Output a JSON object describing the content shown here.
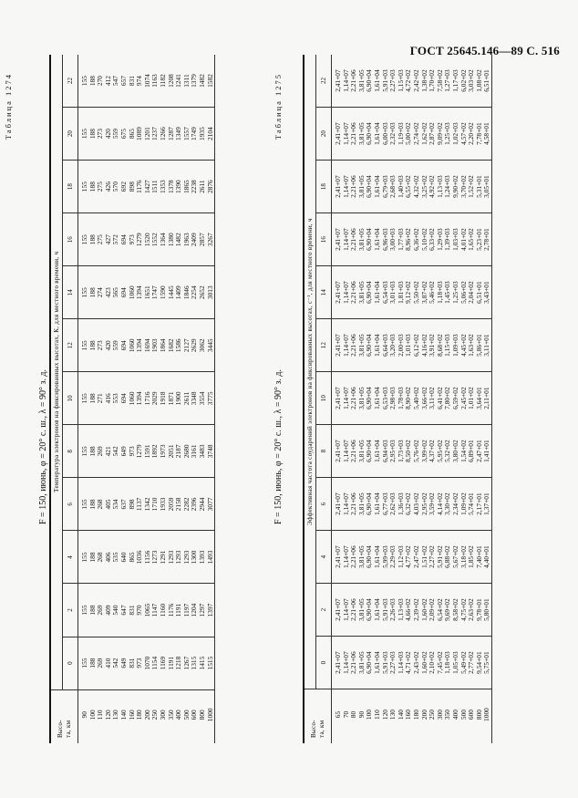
{
  "page_header": "ГОСТ 25645.146—89  С. 516",
  "tables": [
    {
      "caption": "Таблица 1274",
      "title": "F = 150, июнь, φ = 20° с. ш., λ = 90° з. д.",
      "header_group": "Температура электронов на фиксированных высотах, К, для местного времени, ч",
      "altitude_label": "Высо-та, км",
      "hours": [
        "0",
        "2",
        "4",
        "6",
        "8",
        "10",
        "12",
        "14",
        "16",
        "18",
        "20",
        "22"
      ],
      "altitudes": [
        "90",
        "100",
        "110",
        "120",
        "130",
        "140",
        "160",
        "180",
        "200",
        "250",
        "300",
        "350",
        "400",
        "500",
        "600",
        "800",
        "1000"
      ],
      "columns": [
        [
          "155",
          "188",
          "269",
          "410",
          "542",
          "649",
          "831",
          "973",
          "1070",
          "1154",
          "1169",
          "1191",
          "1218",
          "1267",
          "1315",
          "1415",
          "1515"
        ],
        [
          "155",
          "188",
          "269",
          "409",
          "540",
          "647",
          "831",
          "970",
          "1065",
          "1147",
          "1160",
          "1176",
          "1191",
          "1197",
          "1204",
          "1297",
          "1397"
        ],
        [
          "155",
          "188",
          "268",
          "406",
          "535",
          "640",
          "865",
          "1036",
          "1156",
          "1273",
          "1291",
          "1293",
          "1293",
          "1293",
          "1300",
          "1393",
          "1493"
        ],
        [
          "155",
          "188",
          "268",
          "405",
          "534",
          "637",
          "898",
          "1137",
          "1342",
          "1710",
          "1933",
          "2059",
          "2158",
          "2282",
          "2396",
          "2944",
          "3077"
        ],
        [
          "155",
          "188",
          "269",
          "421",
          "542",
          "649",
          "973",
          "1279",
          "1591",
          "1892",
          "1973",
          "2051",
          "2187",
          "2680",
          "3161",
          "3483",
          "3748"
        ],
        [
          "155",
          "188",
          "271",
          "416",
          "553",
          "694",
          "1060",
          "1394",
          "1716",
          "2029",
          "1918",
          "1871",
          "1900",
          "2611",
          "3348",
          "3554",
          "3775"
        ],
        [
          "155",
          "188",
          "273",
          "420",
          "559",
          "694",
          "1060",
          "1394",
          "1694",
          "1903",
          "1864",
          "1682",
          "1586",
          "2127",
          "2629",
          "3062",
          "3445"
        ],
        [
          "155",
          "188",
          "274",
          "423",
          "565",
          "694",
          "1060",
          "1394",
          "1651",
          "1747",
          "1590",
          "1445",
          "1409",
          "1846",
          "2254",
          "2652",
          "3013"
        ],
        [
          "155",
          "188",
          "275",
          "427",
          "572",
          "694",
          "973",
          "1279",
          "1520",
          "1552",
          "1364",
          "1380",
          "1482",
          "1963",
          "2409",
          "2857",
          "3267"
        ],
        [
          "155",
          "188",
          "275",
          "426",
          "570",
          "692",
          "898",
          "1176",
          "1427",
          "1511",
          "1353",
          "1378",
          "1390",
          "1865",
          "2238",
          "2611",
          "2876"
        ],
        [
          "155",
          "188",
          "273",
          "420",
          "559",
          "675",
          "865",
          "1089",
          "1201",
          "1237",
          "1266",
          "1287",
          "1349",
          "1557",
          "1749",
          "1935",
          "2104"
        ],
        [
          "155",
          "188",
          "270",
          "412",
          "547",
          "657",
          "831",
          "974",
          "1074",
          "1163",
          "1182",
          "1208",
          "1241",
          "1311",
          "1379",
          "1482",
          "1582"
        ]
      ]
    },
    {
      "caption": "Таблица 1275",
      "title": "F = 150, июнь, φ = 20° с. ш., λ = 90° з. д.",
      "header_group": "Эффективная частота соударений электронов на фиксированных высотах, с⁻¹, для местного времени, ч",
      "altitude_label": "Высо-та, км",
      "hours": [
        "0",
        "2",
        "4",
        "6",
        "8",
        "10",
        "12",
        "14",
        "16",
        "18",
        "20",
        "22"
      ],
      "altitudes": [
        "65",
        "70",
        "80",
        "90",
        "100",
        "110",
        "120",
        "130",
        "140",
        "160",
        "180",
        "200",
        "250",
        "300",
        "350",
        "400",
        "500",
        "600",
        "800",
        "1000"
      ],
      "columns": [
        [
          "2,41+07",
          "1,14+07",
          "2,21+06",
          "3,81+05",
          "6,90+04",
          "1,61+04",
          "5,91+03",
          "2,27+03",
          "1,14+03",
          "4,71+02",
          "2,43+02",
          "1,60+02",
          "2,10+02",
          "7,45+02",
          "1,18+03",
          "1,05+03",
          "5,49+02",
          "2,77+02",
          "9,54+01",
          "5,75+01"
        ],
        [
          "2,41+07",
          "1,14+07",
          "2,21+06",
          "3,81+05",
          "6,90+04",
          "1,61+04",
          "5,91+03",
          "2,26+03",
          "1,13+03",
          "4,66+02",
          "2,39+02",
          "1,60+02",
          "2,09+02",
          "6,54+02",
          "9,69+02",
          "8,58+02",
          "4,75+02",
          "2,63+02",
          "9,78+01",
          "5,80+01"
        ],
        [
          "2,41+07",
          "1,14+07",
          "2,21+06",
          "3,81+05",
          "6,90+04",
          "1,61+04",
          "5,99+03",
          "2,29+03",
          "1,12+03",
          "4,77+02",
          "2,47+02",
          "1,51+02",
          "2,27+02",
          "5,91+02",
          "6,88+02",
          "5,67+02",
          "3,18+02",
          "1,85+02",
          "7,40+01",
          "4,40+01"
        ],
        [
          "2,41+07",
          "1,14+07",
          "2,21+06",
          "3,81+05",
          "6,90+04",
          "1,61+04",
          "6,77+03",
          "2,62+03",
          "1,36+03",
          "6,32+02",
          "4,03+02",
          "2,95+02",
          "3,59+02",
          "4,14+02",
          "3,30+02",
          "2,34+02",
          "1,09+02",
          "5,74+01",
          "2,17+01",
          "1,37+01"
        ],
        [
          "2,41+07",
          "1,14+07",
          "2,21+06",
          "3,81+05",
          "6,90+04",
          "1,61+04",
          "6,94+03",
          "2,95+03",
          "1,73+03",
          "8,50+02",
          "5,76+02",
          "3,99+02",
          "4,37+02",
          "5,95+02",
          "5,32+02",
          "3,80+02",
          "1,54+02",
          "6,89+01",
          "2,47+01",
          "1,41+01"
        ],
        [
          "2,41+07",
          "1,14+07",
          "2,21+06",
          "3,81+05",
          "6,90+04",
          "1,61+04",
          "6,53+03",
          "2,98+03",
          "1,78+03",
          "8,90+02",
          "5,40+02",
          "3,66+02",
          "3,11+02",
          "6,41+02",
          "7,80+02",
          "6,59+02",
          "2,45+02",
          "1,01+02",
          "3,64+01",
          "2,11+01"
        ],
        [
          "2,41+07",
          "1,14+07",
          "2,21+06",
          "3,81+05",
          "6,90+04",
          "1,61+04",
          "6,64+03",
          "3,20+03",
          "2,00+03",
          "1,01+03",
          "6,12+02",
          "4,16+02",
          "3,91+02",
          "8,68+02",
          "1,15+03",
          "1,09+03",
          "4,45+02",
          "1,63+02",
          "5,86+01",
          "3,11+01"
        ],
        [
          "2,41+07",
          "1,14+07",
          "2,21+06",
          "3,81+05",
          "6,90+04",
          "1,61+04",
          "6,54+03",
          "3,01+03",
          "1,81+03",
          "9,12+02",
          "5,50+02",
          "3,87+02",
          "5,46+02",
          "1,18+03",
          "1,45+03",
          "1,25+03",
          "5,06+02",
          "2,04+02",
          "6,51+01",
          "3,43+01"
        ],
        [
          "2,41+07",
          "1,14+07",
          "2,21+06",
          "3,81+05",
          "6,90+04",
          "1,61+04",
          "6,96+03",
          "3,00+03",
          "1,77+03",
          "8,96+02",
          "6,36+02",
          "5,10+02",
          "6,33+02",
          "1,29+03",
          "1,39+03",
          "1,03+03",
          "4,01+02",
          "1,65+02",
          "5,23+01",
          "2,78+01"
        ],
        [
          "2,41+07",
          "1,14+07",
          "2,21+06",
          "3,81+05",
          "6,90+04",
          "1,61+04",
          "6,79+03",
          "2,68+03",
          "1,40+03",
          "6,55+02",
          "4,32+02",
          "3,25+02",
          "4,92+02",
          "1,13+03",
          "1,24+03",
          "9,90+02",
          "3,70+02",
          "1,52+02",
          "5,31+01",
          "3,05+01"
        ],
        [
          "2,41+07",
          "1,14+07",
          "2,21+06",
          "3,81+05",
          "6,90+04",
          "1,61+04",
          "6,00+03",
          "2,32+03",
          "1,19+03",
          "5,00+02",
          "2,74+02",
          "1,62+02",
          "2,87+02",
          "9,09+02",
          "1,25+03",
          "1,02+03",
          "4,57+02",
          "2,20+02",
          "7,78+01",
          "4,58+01"
        ],
        [
          "2,41+07",
          "1,14+07",
          "2,21+06",
          "3,81+05",
          "6,90+04",
          "1,61+04",
          "5,91+03",
          "2,27+03",
          "1,15+03",
          "4,72+02",
          "2,42+02",
          "1,38+02",
          "1,70+02",
          "7,58+02",
          "1,27+03",
          "1,17+03",
          "6,02+02",
          "3,03+02",
          "1,08+02",
          "6,51+01"
        ]
      ]
    }
  ]
}
